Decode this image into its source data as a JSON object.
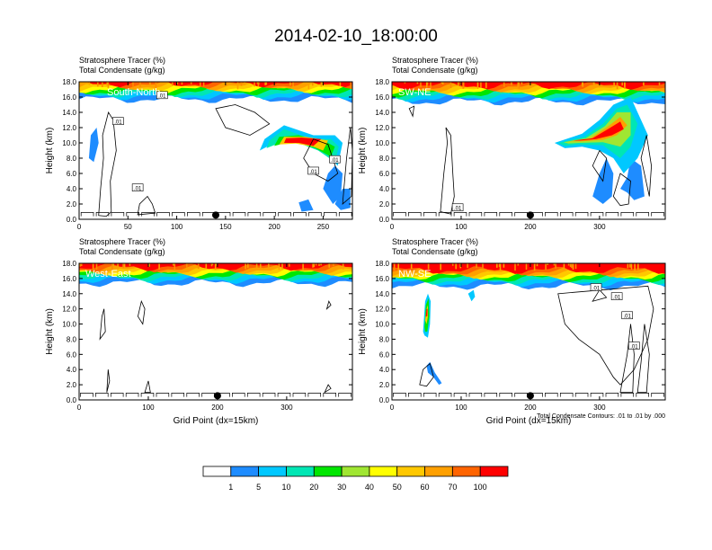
{
  "figure": {
    "title": "2014-02-10_18:00:00",
    "footnote": "Total Condensate Contours: .01 to .01 by .000"
  },
  "chart_data": [
    {
      "type": "heatmap",
      "panel_label": "South-North",
      "subtitle_line1": "Stratosphere Tracer   (%)",
      "subtitle_line2": "Total Condensate   (g/kg)",
      "ylabel": "Height (km)",
      "xlabel": "",
      "xlim": [
        0,
        280
      ],
      "xticks": [
        0,
        50,
        100,
        150,
        200,
        250
      ],
      "ylim": [
        0,
        18
      ],
      "yticks": [
        "0.0",
        "2.0",
        "4.0",
        "6.0",
        "8.0",
        "10.0",
        "12.0",
        "14.0",
        "16.0",
        "18.0"
      ],
      "contour_labels": [
        ".01",
        ".01",
        ".01",
        ".01",
        ".01"
      ],
      "marker_x": 140
    },
    {
      "type": "heatmap",
      "panel_label": "SW-NE",
      "subtitle_line1": "Stratosphere Tracer   (%)",
      "subtitle_line2": "Total Condensate   (g/kg)",
      "ylabel": "Height (km)",
      "xlabel": "",
      "xlim": [
        0,
        395
      ],
      "xticks": [
        0,
        100,
        200,
        300
      ],
      "ylim": [
        0,
        18
      ],
      "yticks": [
        "0.0",
        "2.0",
        "4.0",
        "6.0",
        "8.0",
        "10.0",
        "12.0",
        "14.0",
        "16.0",
        "18.0"
      ],
      "contour_labels": [
        ".01"
      ],
      "marker_x": 200
    },
    {
      "type": "heatmap",
      "panel_label": "West-East",
      "subtitle_line1": "Stratosphere Tracer   (%)",
      "subtitle_line2": "Total Condensate   (g/kg)",
      "ylabel": "Height (km)",
      "xlabel": "Grid Point (dx=15km)",
      "xlim": [
        0,
        395
      ],
      "xticks": [
        0,
        100,
        200,
        300
      ],
      "ylim": [
        0,
        18
      ],
      "yticks": [
        "0.0",
        "2.0",
        "4.0",
        "6.0",
        "8.0",
        "10.0",
        "12.0",
        "14.0",
        "16.0",
        "18.0"
      ],
      "contour_labels": [],
      "marker_x": 200
    },
    {
      "type": "heatmap",
      "panel_label": "NW-SE",
      "subtitle_line1": "Stratosphere Tracer   (%)",
      "subtitle_line2": "Total Condensate   (g/kg)",
      "ylabel": "Height (km)",
      "xlabel": "Grid Point (dx=15km)",
      "xlim": [
        0,
        395
      ],
      "xticks": [
        0,
        100,
        200,
        300
      ],
      "ylim": [
        0,
        18
      ],
      "yticks": [
        "0.0",
        "2.0",
        "4.0",
        "6.0",
        "8.0",
        "10.0",
        "12.0",
        "14.0",
        "16.0",
        "18.0"
      ],
      "contour_labels": [
        ".01",
        ".01",
        ".01",
        ".01"
      ],
      "marker_x": 200
    }
  ],
  "colorbar": {
    "labels": [
      "1",
      "5",
      "10",
      "20",
      "30",
      "40",
      "50",
      "60",
      "70",
      "100"
    ],
    "colors": [
      "#ffffff",
      "#1e8cff",
      "#00c8ff",
      "#00e6b4",
      "#00e600",
      "#a0e632",
      "#ffff00",
      "#ffc800",
      "#ffa000",
      "#ff6400",
      "#ff0000"
    ]
  }
}
